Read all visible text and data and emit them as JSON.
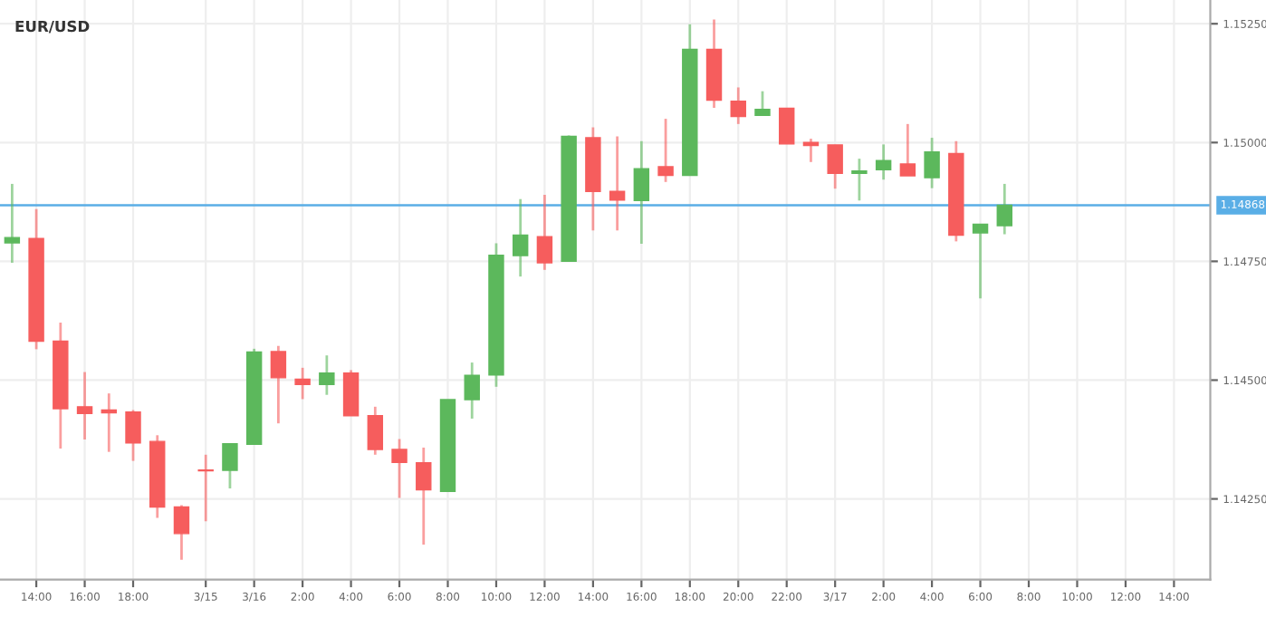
{
  "chart_data": {
    "type": "candlestick",
    "title": "EUR/USD",
    "categories": [
      null,
      "14:00",
      null,
      "16:00",
      null,
      "18:00",
      null,
      null,
      "3/15",
      null,
      "3/16",
      null,
      "2:00",
      null,
      "4:00",
      null,
      "6:00",
      null,
      "8:00",
      null,
      "10:00",
      null,
      "12:00",
      null,
      "14:00",
      null,
      "16:00",
      null,
      "18:00",
      null,
      "20:00",
      null,
      "22:00",
      null,
      "3/17",
      null,
      "2:00",
      null,
      "4:00",
      null,
      "6:00",
      null,
      "8:00",
      null,
      "10:00",
      null,
      "12:00",
      null,
      "14:00",
      null
    ],
    "ohlc": [
      [
        1.14789,
        1.14913,
        1.14747,
        1.148
      ],
      [
        1.14798,
        1.1486,
        1.14565,
        1.14582
      ],
      [
        1.14582,
        1.14621,
        1.14356,
        1.1444
      ],
      [
        1.14444,
        1.14517,
        1.14375,
        1.1443
      ],
      [
        1.14437,
        1.14472,
        1.14349,
        1.14431
      ],
      [
        1.14433,
        1.14437,
        1.1433,
        1.14368
      ],
      [
        1.14371,
        1.14384,
        1.1421,
        1.14233
      ],
      [
        1.14233,
        1.14237,
        1.14122,
        1.14177
      ],
      [
        1.14311,
        1.14343,
        1.14203,
        1.14309
      ],
      [
        1.1431,
        1.14366,
        1.14272,
        1.14366
      ],
      [
        1.14365,
        1.14566,
        1.14365,
        1.14559
      ],
      [
        1.1456,
        1.14572,
        1.14409,
        1.14505
      ],
      [
        1.14502,
        1.14526,
        1.1446,
        1.14491
      ],
      [
        1.14491,
        1.14552,
        1.14469,
        1.14515
      ],
      [
        1.14515,
        1.14521,
        1.14425,
        1.14425
      ],
      [
        1.14425,
        1.14444,
        1.14343,
        1.14354
      ],
      [
        1.14354,
        1.14376,
        1.14252,
        1.14327
      ],
      [
        1.14326,
        1.14358,
        1.14154,
        1.14269
      ],
      [
        1.14266,
        1.14459,
        1.14266,
        1.14459
      ],
      [
        1.14459,
        1.14537,
        1.14419,
        1.1451
      ],
      [
        1.14511,
        1.14788,
        1.14486,
        1.14763
      ],
      [
        1.14762,
        1.14881,
        1.14718,
        1.14805
      ],
      [
        1.14802,
        1.1489,
        1.14732,
        1.14747
      ],
      [
        1.1475,
        1.15015,
        1.1475,
        1.15013
      ],
      [
        1.1501,
        1.15032,
        1.14815,
        1.14897
      ],
      [
        1.14897,
        1.15013,
        1.14815,
        1.14879
      ],
      [
        1.14878,
        1.15003,
        1.14787,
        1.14945
      ],
      [
        1.14949,
        1.1505,
        1.14917,
        1.14931
      ],
      [
        1.14931,
        1.15249,
        1.14931,
        1.15196
      ],
      [
        1.15196,
        1.15259,
        1.15073,
        1.15089
      ],
      [
        1.15087,
        1.15116,
        1.15039,
        1.15055
      ],
      [
        1.15057,
        1.15108,
        1.15057,
        1.1507
      ],
      [
        1.15072,
        1.15072,
        1.14997,
        1.14997
      ],
      [
        1.15,
        1.15008,
        1.14959,
        1.14994
      ],
      [
        1.14995,
        1.14995,
        1.14903,
        1.14935
      ],
      [
        1.14935,
        1.14966,
        1.14878,
        1.1494
      ],
      [
        1.14943,
        1.14996,
        1.14922,
        1.14962
      ],
      [
        1.14955,
        1.15039,
        1.1493,
        1.1493
      ],
      [
        1.14926,
        1.1501,
        1.14904,
        1.1498
      ],
      [
        1.14977,
        1.15003,
        1.14792,
        1.14805
      ],
      [
        1.1481,
        1.14828,
        1.14672,
        1.14828
      ],
      [
        1.14825,
        1.14913,
        1.14807,
        1.14868
      ],
      null,
      null,
      null,
      null,
      null,
      null,
      null,
      null
    ],
    "colors": [
      "#5cb85c",
      "#f65d5d",
      "#f65d5d",
      "#f65d5d",
      "#f65d5d",
      "#f65d5d",
      "#f65d5d",
      "#f65d5d",
      "#f65d5d",
      "#5cb85c",
      "#5cb85c",
      "#f65d5d",
      "#f65d5d",
      "#5cb85c",
      "#f65d5d",
      "#f65d5d",
      "#f65d5d",
      "#f65d5d",
      "#5cb85c",
      "#5cb85c",
      "#5cb85c",
      "#5cb85c",
      "#f65d5d",
      "#5cb85c",
      "#f65d5d",
      "#f65d5d",
      "#5cb85c",
      "#f65d5d",
      "#5cb85c",
      "#f65d5d",
      "#f65d5d",
      "#5cb85c",
      "#f65d5d",
      "#f65d5d",
      "#f65d5d",
      "#5cb85c",
      "#5cb85c",
      "#f65d5d",
      "#5cb85c",
      "#f65d5d",
      "#5cb85c",
      "#5cb85c",
      null,
      null,
      null,
      null,
      null,
      null,
      null,
      null
    ],
    "ylim": [
      1.1408,
      1.153
    ],
    "yticks": [
      {
        "value": 1.1425,
        "label": "1.14250"
      },
      {
        "value": 1.145,
        "label": "1.14500"
      },
      {
        "value": 1.1475,
        "label": "1.14750"
      },
      {
        "value": 1.15,
        "label": "1.15000"
      },
      {
        "value": 1.1525,
        "label": "1.15250"
      }
    ],
    "ref_lines": [
      {
        "axis": "y",
        "value": 1.14868,
        "label": "1.14868",
        "color": "#5aaee6"
      }
    ],
    "grid": true
  }
}
